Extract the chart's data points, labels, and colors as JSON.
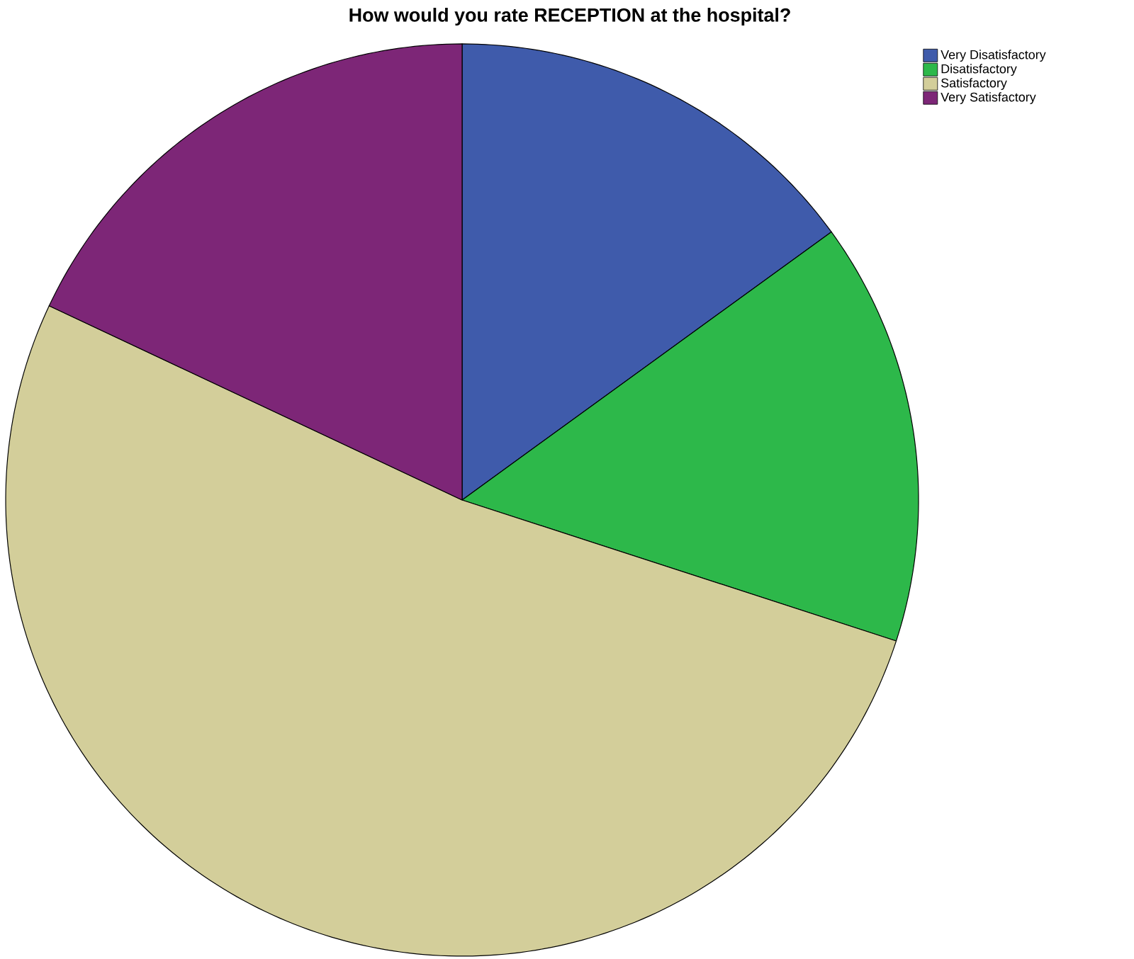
{
  "chart_data": {
    "type": "pie",
    "title": "How would you rate RECEPTION at the hospital?",
    "categories": [
      "Very Disatisfactory",
      "Disatisfactory",
      "Satisfactory",
      "Very Satisfactory"
    ],
    "values": [
      15,
      15,
      52,
      18
    ],
    "colors": [
      "#3f5bab",
      "#2db84a",
      "#d3ce9a",
      "#7d2677"
    ],
    "legend": "top right"
  }
}
